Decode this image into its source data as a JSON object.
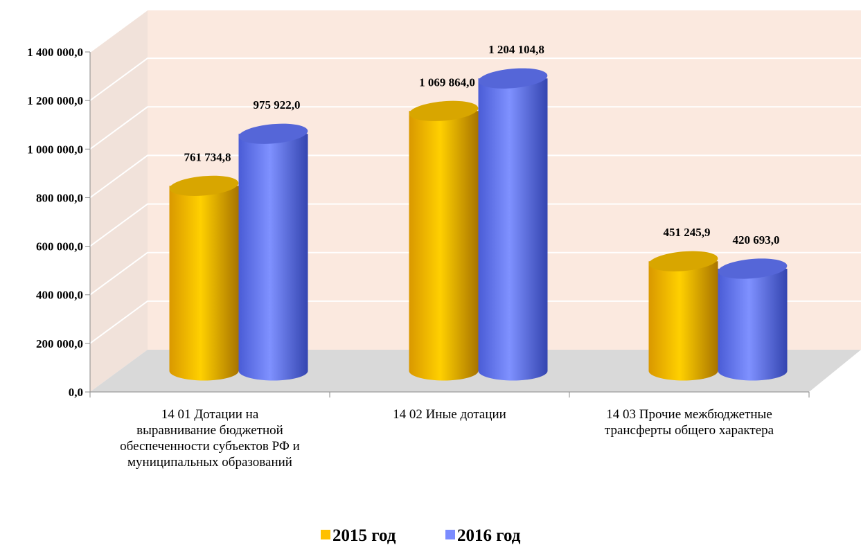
{
  "chart_data": {
    "type": "bar3d",
    "categories": [
      "14 01 Дотации на выравнивание бюджетной обеспеченности субъектов РФ и муниципальных образований",
      "14 02 Иные дотации",
      "14 03 Прочие межбюджетные трансферты общего характера"
    ],
    "series": [
      {
        "name": "2015 год",
        "color": "#ffc000",
        "values": [
          761734.8,
          1069864.0,
          451245.9
        ],
        "value_labels": [
          "761 734,8",
          "1 069 864,0",
          "451 245,9"
        ]
      },
      {
        "name": "2016 год",
        "color": "#7b8cff",
        "values": [
          975922.0,
          1204104.8,
          420693.0
        ],
        "value_labels": [
          "975 922,0",
          "1 204 104,8",
          "420 693,0"
        ]
      }
    ],
    "ylim": [
      0,
      1400000
    ],
    "yticks": [
      {
        "value": 0,
        "label": "0,0"
      },
      {
        "value": 200000,
        "label": "200 000,0"
      },
      {
        "value": 400000,
        "label": "400 000,0"
      },
      {
        "value": 600000,
        "label": "600 000,0"
      },
      {
        "value": 800000,
        "label": "800 000,0"
      },
      {
        "value": 1000000,
        "label": "1 000 000,0"
      },
      {
        "value": 1200000,
        "label": "1 200 000,0"
      },
      {
        "value": 1400000,
        "label": "1 400 000,0"
      }
    ],
    "grid": true,
    "legend": "bottom"
  }
}
